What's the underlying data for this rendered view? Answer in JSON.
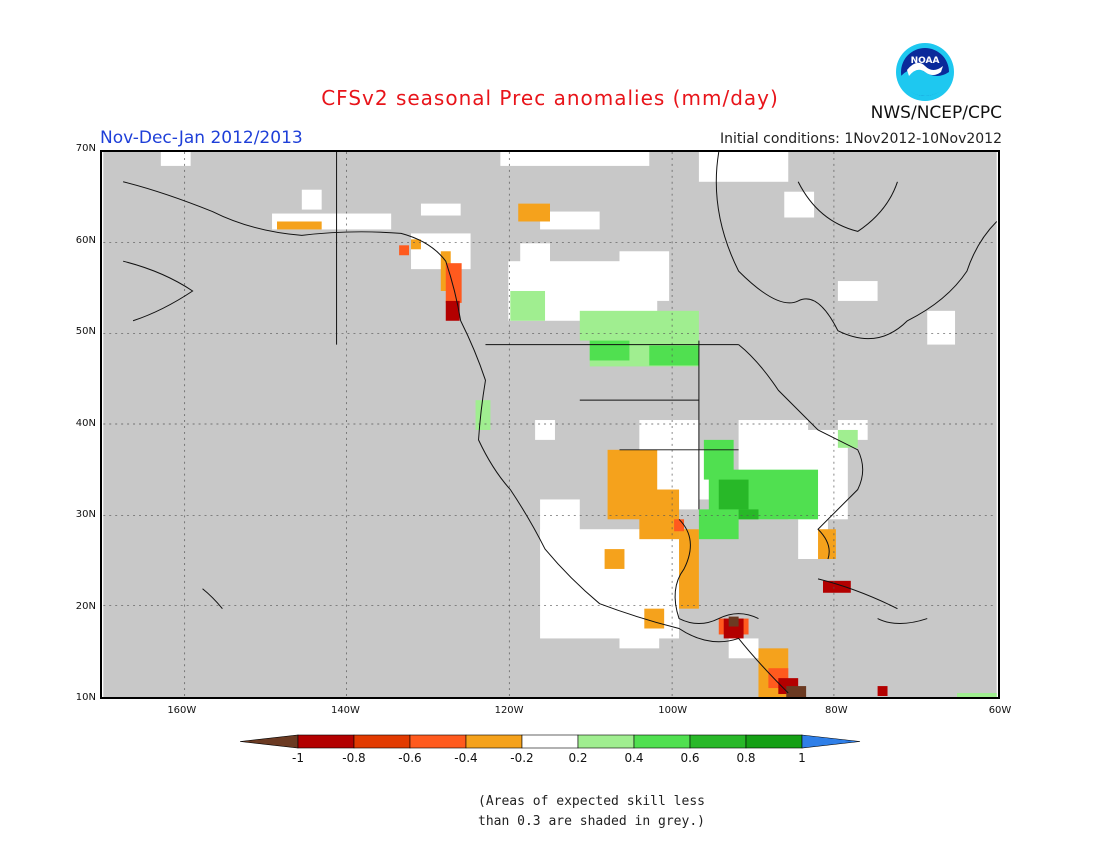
{
  "header": {
    "title": "CFSv2 seasonal Prec anomalies (mm/day)",
    "period": "Nov-Dec-Jan 2012/2013",
    "initial_conditions": "Initial conditions: 1Nov2012-10Nov2012",
    "agency": "NWS/NCEP/CPC",
    "logo_text": "NOAA"
  },
  "map": {
    "lon_range": [
      -170,
      -60
    ],
    "lat_range": [
      10,
      70
    ],
    "x_ticks": [
      "160W",
      "140W",
      "120W",
      "100W",
      "80W",
      "60W"
    ],
    "x_tick_lons": [
      -160,
      -140,
      -120,
      -100,
      -80,
      -60
    ],
    "y_ticks": [
      "70N",
      "60N",
      "50N",
      "40N",
      "30N",
      "20N",
      "10N"
    ],
    "y_tick_lats": [
      70,
      60,
      50,
      40,
      30,
      20,
      10
    ],
    "background_color": "#c8c8c8"
  },
  "colorbar": {
    "labels": [
      "-1",
      "-0.8",
      "-0.6",
      "-0.4",
      "-0.2",
      "0.2",
      "0.4",
      "0.6",
      "0.8",
      "1"
    ],
    "colors": [
      "#6b3a22",
      "#b30000",
      "#e23a00",
      "#ff5a1e",
      "#f5a21c",
      "#ffffff",
      "#a0ee90",
      "#50e050",
      "#28b828",
      "#15a015",
      "#2f7fe8"
    ]
  },
  "note": {
    "line1": "(Areas of expected skill less",
    "line2": "than 0.3 are shaded in grey.)"
  }
}
